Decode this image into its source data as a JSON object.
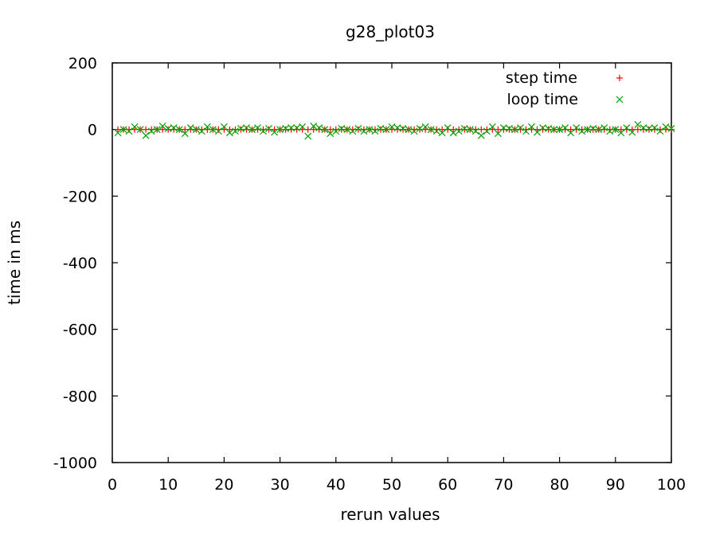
{
  "chart_data": {
    "type": "scatter",
    "title": "g28_plot03",
    "xlabel": "rerun values",
    "ylabel": "time in ms",
    "xlim": [
      0,
      100
    ],
    "ylim": [
      -1000,
      200
    ],
    "xticks": [
      "0",
      "10",
      "20",
      "30",
      "40",
      "50",
      "60",
      "70",
      "80",
      "90",
      "100"
    ],
    "yticks": [
      "200",
      "0",
      "-200",
      "-400",
      "-600",
      "-800",
      "-1000"
    ],
    "grid": false,
    "legend_position": "top-right",
    "series": [
      {
        "name": "step time",
        "marker": "+",
        "color": "#ff0000",
        "x": [
          1,
          2,
          3,
          4,
          5,
          6,
          7,
          8,
          9,
          10,
          11,
          12,
          13,
          14,
          15,
          16,
          17,
          18,
          19,
          20,
          21,
          22,
          23,
          24,
          25,
          26,
          27,
          28,
          29,
          30,
          31,
          32,
          33,
          34,
          35,
          36,
          37,
          38,
          39,
          40,
          41,
          42,
          43,
          44,
          45,
          46,
          47,
          48,
          49,
          50,
          51,
          52,
          53,
          54,
          55,
          56,
          57,
          58,
          59,
          60,
          61,
          62,
          63,
          64,
          65,
          66,
          67,
          68,
          69,
          70,
          71,
          72,
          73,
          74,
          75,
          76,
          77,
          78,
          79,
          80,
          81,
          82,
          83,
          84,
          85,
          86,
          87,
          88,
          89,
          90,
          91,
          92,
          93,
          94,
          95,
          96,
          97,
          98,
          99,
          100
        ],
        "y": [
          0,
          0,
          0,
          0,
          0,
          0,
          0,
          0,
          0,
          0,
          0,
          0,
          0,
          0,
          0,
          0,
          0,
          0,
          0,
          0,
          0,
          0,
          0,
          0,
          0,
          0,
          0,
          0,
          0,
          0,
          0,
          0,
          0,
          0,
          0,
          0,
          0,
          0,
          0,
          0,
          0,
          0,
          0,
          0,
          0,
          0,
          0,
          0,
          0,
          0,
          0,
          0,
          0,
          0,
          0,
          0,
          0,
          0,
          0,
          0,
          0,
          0,
          0,
          0,
          0,
          0,
          0,
          0,
          0,
          0,
          0,
          0,
          0,
          0,
          0,
          0,
          0,
          0,
          0,
          0,
          0,
          0,
          0,
          0,
          0,
          0,
          0,
          0,
          0,
          0,
          0,
          0,
          0,
          0,
          0,
          0,
          0,
          0,
          0,
          0
        ]
      },
      {
        "name": "loop time",
        "marker": "x",
        "color": "#00a000",
        "x": [
          1,
          2,
          3,
          4,
          5,
          6,
          7,
          8,
          9,
          10,
          11,
          12,
          13,
          14,
          15,
          16,
          17,
          18,
          19,
          20,
          21,
          22,
          23,
          24,
          25,
          26,
          27,
          28,
          29,
          30,
          31,
          32,
          33,
          34,
          35,
          36,
          37,
          38,
          39,
          40,
          41,
          42,
          43,
          44,
          45,
          46,
          47,
          48,
          49,
          50,
          51,
          52,
          53,
          54,
          55,
          56,
          57,
          58,
          59,
          60,
          61,
          62,
          63,
          64,
          65,
          66,
          67,
          68,
          69,
          70,
          71,
          72,
          73,
          74,
          75,
          76,
          77,
          78,
          79,
          80,
          81,
          82,
          83,
          84,
          85,
          86,
          87,
          88,
          89,
          90,
          91,
          92,
          93,
          94,
          95,
          96,
          97,
          98,
          99,
          100
        ],
        "y": [
          -10,
          0,
          -5,
          8,
          0,
          -18,
          -5,
          0,
          10,
          3,
          5,
          0,
          -12,
          5,
          0,
          -5,
          8,
          0,
          -5,
          8,
          -10,
          -5,
          3,
          5,
          0,
          5,
          -5,
          3,
          -8,
          0,
          3,
          5,
          5,
          8,
          -20,
          10,
          5,
          0,
          -12,
          -5,
          3,
          0,
          -5,
          3,
          -5,
          0,
          -5,
          3,
          0,
          8,
          5,
          3,
          0,
          -5,
          3,
          8,
          0,
          -5,
          -10,
          5,
          -10,
          -5,
          3,
          0,
          -5,
          -18,
          -5,
          8,
          -12,
          5,
          3,
          0,
          5,
          -5,
          8,
          -8,
          5,
          3,
          0,
          0,
          5,
          -10,
          5,
          -5,
          0,
          3,
          0,
          5,
          -5,
          0,
          -10,
          5,
          -8,
          15,
          5,
          3,
          5,
          -5,
          8,
          3
        ]
      }
    ]
  }
}
